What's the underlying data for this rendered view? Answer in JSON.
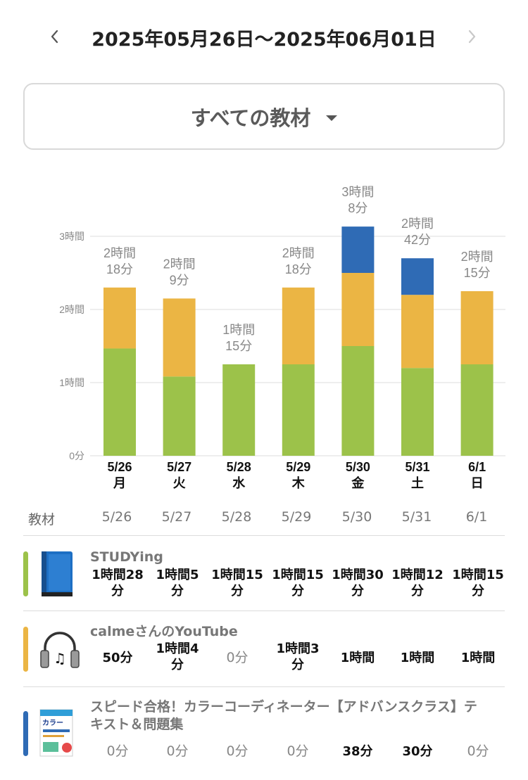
{
  "header": {
    "title": "2025年05月26日〜2025年06月01日",
    "prev_icon": "chevron-left-icon",
    "next_icon": "chevron-right-icon"
  },
  "filter": {
    "selected": "すべての教材",
    "icon": "caret-down-icon"
  },
  "chart_data": {
    "type": "bar",
    "stacked": true,
    "categories": [
      "5/26",
      "5/27",
      "5/28",
      "5/29",
      "5/30",
      "5/31",
      "6/1"
    ],
    "weekdays": [
      "月",
      "火",
      "水",
      "木",
      "金",
      "土",
      "日"
    ],
    "unit": "minutes",
    "ylim": [
      0,
      180
    ],
    "yticks": [
      0,
      60,
      120,
      180
    ],
    "ytick_labels": [
      "0分",
      "1時間",
      "2時間",
      "3時間"
    ],
    "total_labels": [
      [
        "2時間",
        "18分"
      ],
      [
        "2時間",
        "9分"
      ],
      [
        "1時間",
        "15分"
      ],
      [
        "2時間",
        "18分"
      ],
      [
        "3時間",
        "8分"
      ],
      [
        "2時間",
        "42分"
      ],
      [
        "2時間",
        "15分"
      ]
    ],
    "series": [
      {
        "name": "STUDYing",
        "color": "#9cc24a",
        "values": [
          88,
          65,
          75,
          75,
          90,
          72,
          75
        ]
      },
      {
        "name": "calmeさんのYouTube",
        "color": "#ebb544",
        "values": [
          50,
          64,
          0,
          63,
          60,
          60,
          60
        ]
      },
      {
        "name": "スピード合格！カラーコーディネーター【アドバンスクラス】テキスト＆問題集",
        "color": "#2f6bb5",
        "values": [
          0,
          0,
          0,
          0,
          38,
          30,
          0
        ]
      }
    ],
    "grid": true,
    "legend": "none"
  },
  "table": {
    "first_col": "教材",
    "dates": [
      "5/26",
      "5/27",
      "5/28",
      "5/29",
      "5/30",
      "5/31",
      "6/1"
    ],
    "rows": [
      {
        "name": "STUDYing",
        "color": "#9cc24a",
        "icon": "book-icon",
        "cells": [
          [
            "1時間28",
            "分"
          ],
          [
            "1時間5",
            "分"
          ],
          [
            "1時間15",
            "分"
          ],
          [
            "1時間15",
            "分"
          ],
          [
            "1時間30",
            "分"
          ],
          [
            "1時間12",
            "分"
          ],
          [
            "1時間15",
            "分"
          ]
        ]
      },
      {
        "name": "calmeさんのYouTube",
        "color": "#ebb544",
        "icon": "headphones-icon",
        "cells": [
          [
            "50分"
          ],
          [
            "1時間4",
            "分"
          ],
          [
            "0分"
          ],
          [
            "1時間3",
            "分"
          ],
          [
            "1時間"
          ],
          [
            "1時間"
          ],
          [
            "1時間"
          ]
        ]
      },
      {
        "name_lines": [
          "スピード合格！カラーコーディネーター【アドバンスクラス】テ",
          "キスト＆問題集"
        ],
        "color": "#2f6bb5",
        "icon": "book-cover-icon",
        "cover_text": "カラー",
        "cells": [
          [
            "0分"
          ],
          [
            "0分"
          ],
          [
            "0分"
          ],
          [
            "0分"
          ],
          [
            "38分"
          ],
          [
            "30分"
          ],
          [
            "0分"
          ]
        ]
      }
    ]
  }
}
